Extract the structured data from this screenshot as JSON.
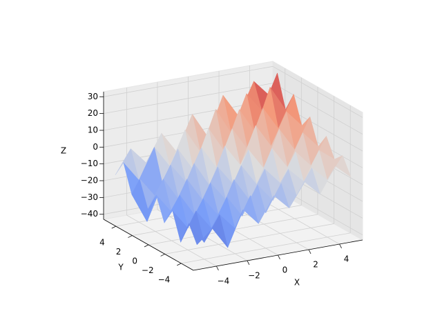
{
  "chart_data": {
    "type": "surface3d",
    "xlabel": "X",
    "ylabel": "Y",
    "zlabel": "Z",
    "x": [
      -5,
      -4,
      -3,
      -2,
      -1,
      0,
      1,
      2,
      3,
      4,
      5
    ],
    "y": [
      -5,
      -4,
      -3,
      -2,
      -1,
      0,
      1,
      2,
      3,
      4,
      5
    ],
    "z": [
      [
        -30,
        -22,
        -35,
        -14,
        -24,
        -9,
        -18,
        -4,
        -13,
        2,
        -6
      ],
      [
        -20,
        -33,
        -18,
        -28,
        -10,
        -22,
        -6,
        -15,
        0,
        -9,
        4
      ],
      [
        -34,
        -17,
        -29,
        -12,
        -25,
        -8,
        -19,
        -2,
        -11,
        6,
        -1
      ],
      [
        -18,
        -30,
        -14,
        -26,
        -6,
        -20,
        -3,
        -13,
        4,
        -6,
        10
      ],
      [
        -28,
        -13,
        -27,
        -9,
        -21,
        -2,
        -15,
        5,
        -8,
        11,
        1
      ],
      [
        -14,
        -26,
        -8,
        -22,
        -4,
        -16,
        3,
        -10,
        12,
        -2,
        16
      ],
      [
        -25,
        -9,
        -23,
        -3,
        -18,
        4,
        -9,
        13,
        -1,
        18,
        8
      ],
      [
        -10,
        -22,
        -5,
        -17,
        2,
        -12,
        10,
        -4,
        19,
        5,
        24
      ],
      [
        -22,
        -40,
        -19,
        0,
        -14,
        9,
        -6,
        17,
        2,
        27,
        12
      ],
      [
        -6,
        -18,
        0,
        -13,
        7,
        -8,
        16,
        0,
        22,
        10,
        31
      ],
      [
        -16,
        -2,
        -12,
        4,
        -9,
        12,
        -3,
        20,
        6,
        25,
        15
      ]
    ],
    "colormap": [
      "#3b4cc0",
      "#7b9ff9",
      "#dddddd",
      "#f49a7b",
      "#b40426"
    ],
    "xlim": [
      -5.5,
      5.5
    ],
    "ylim": [
      -5.5,
      5.5
    ],
    "zlim": [
      -43,
      33
    ],
    "xticks": [
      {
        "value": -4,
        "label": "−4"
      },
      {
        "value": -2,
        "label": "−2"
      },
      0,
      2,
      4
    ],
    "yticks": [
      {
        "value": -4,
        "label": "−4"
      },
      {
        "value": -2,
        "label": "−2"
      },
      0,
      2,
      4
    ],
    "zticks": [
      {
        "value": -40,
        "label": "−40"
      },
      {
        "value": -30,
        "label": "−30"
      },
      {
        "value": -20,
        "label": "−20"
      },
      {
        "value": -10,
        "label": "−10"
      },
      0,
      10,
      20,
      30
    ],
    "grid": true
  }
}
